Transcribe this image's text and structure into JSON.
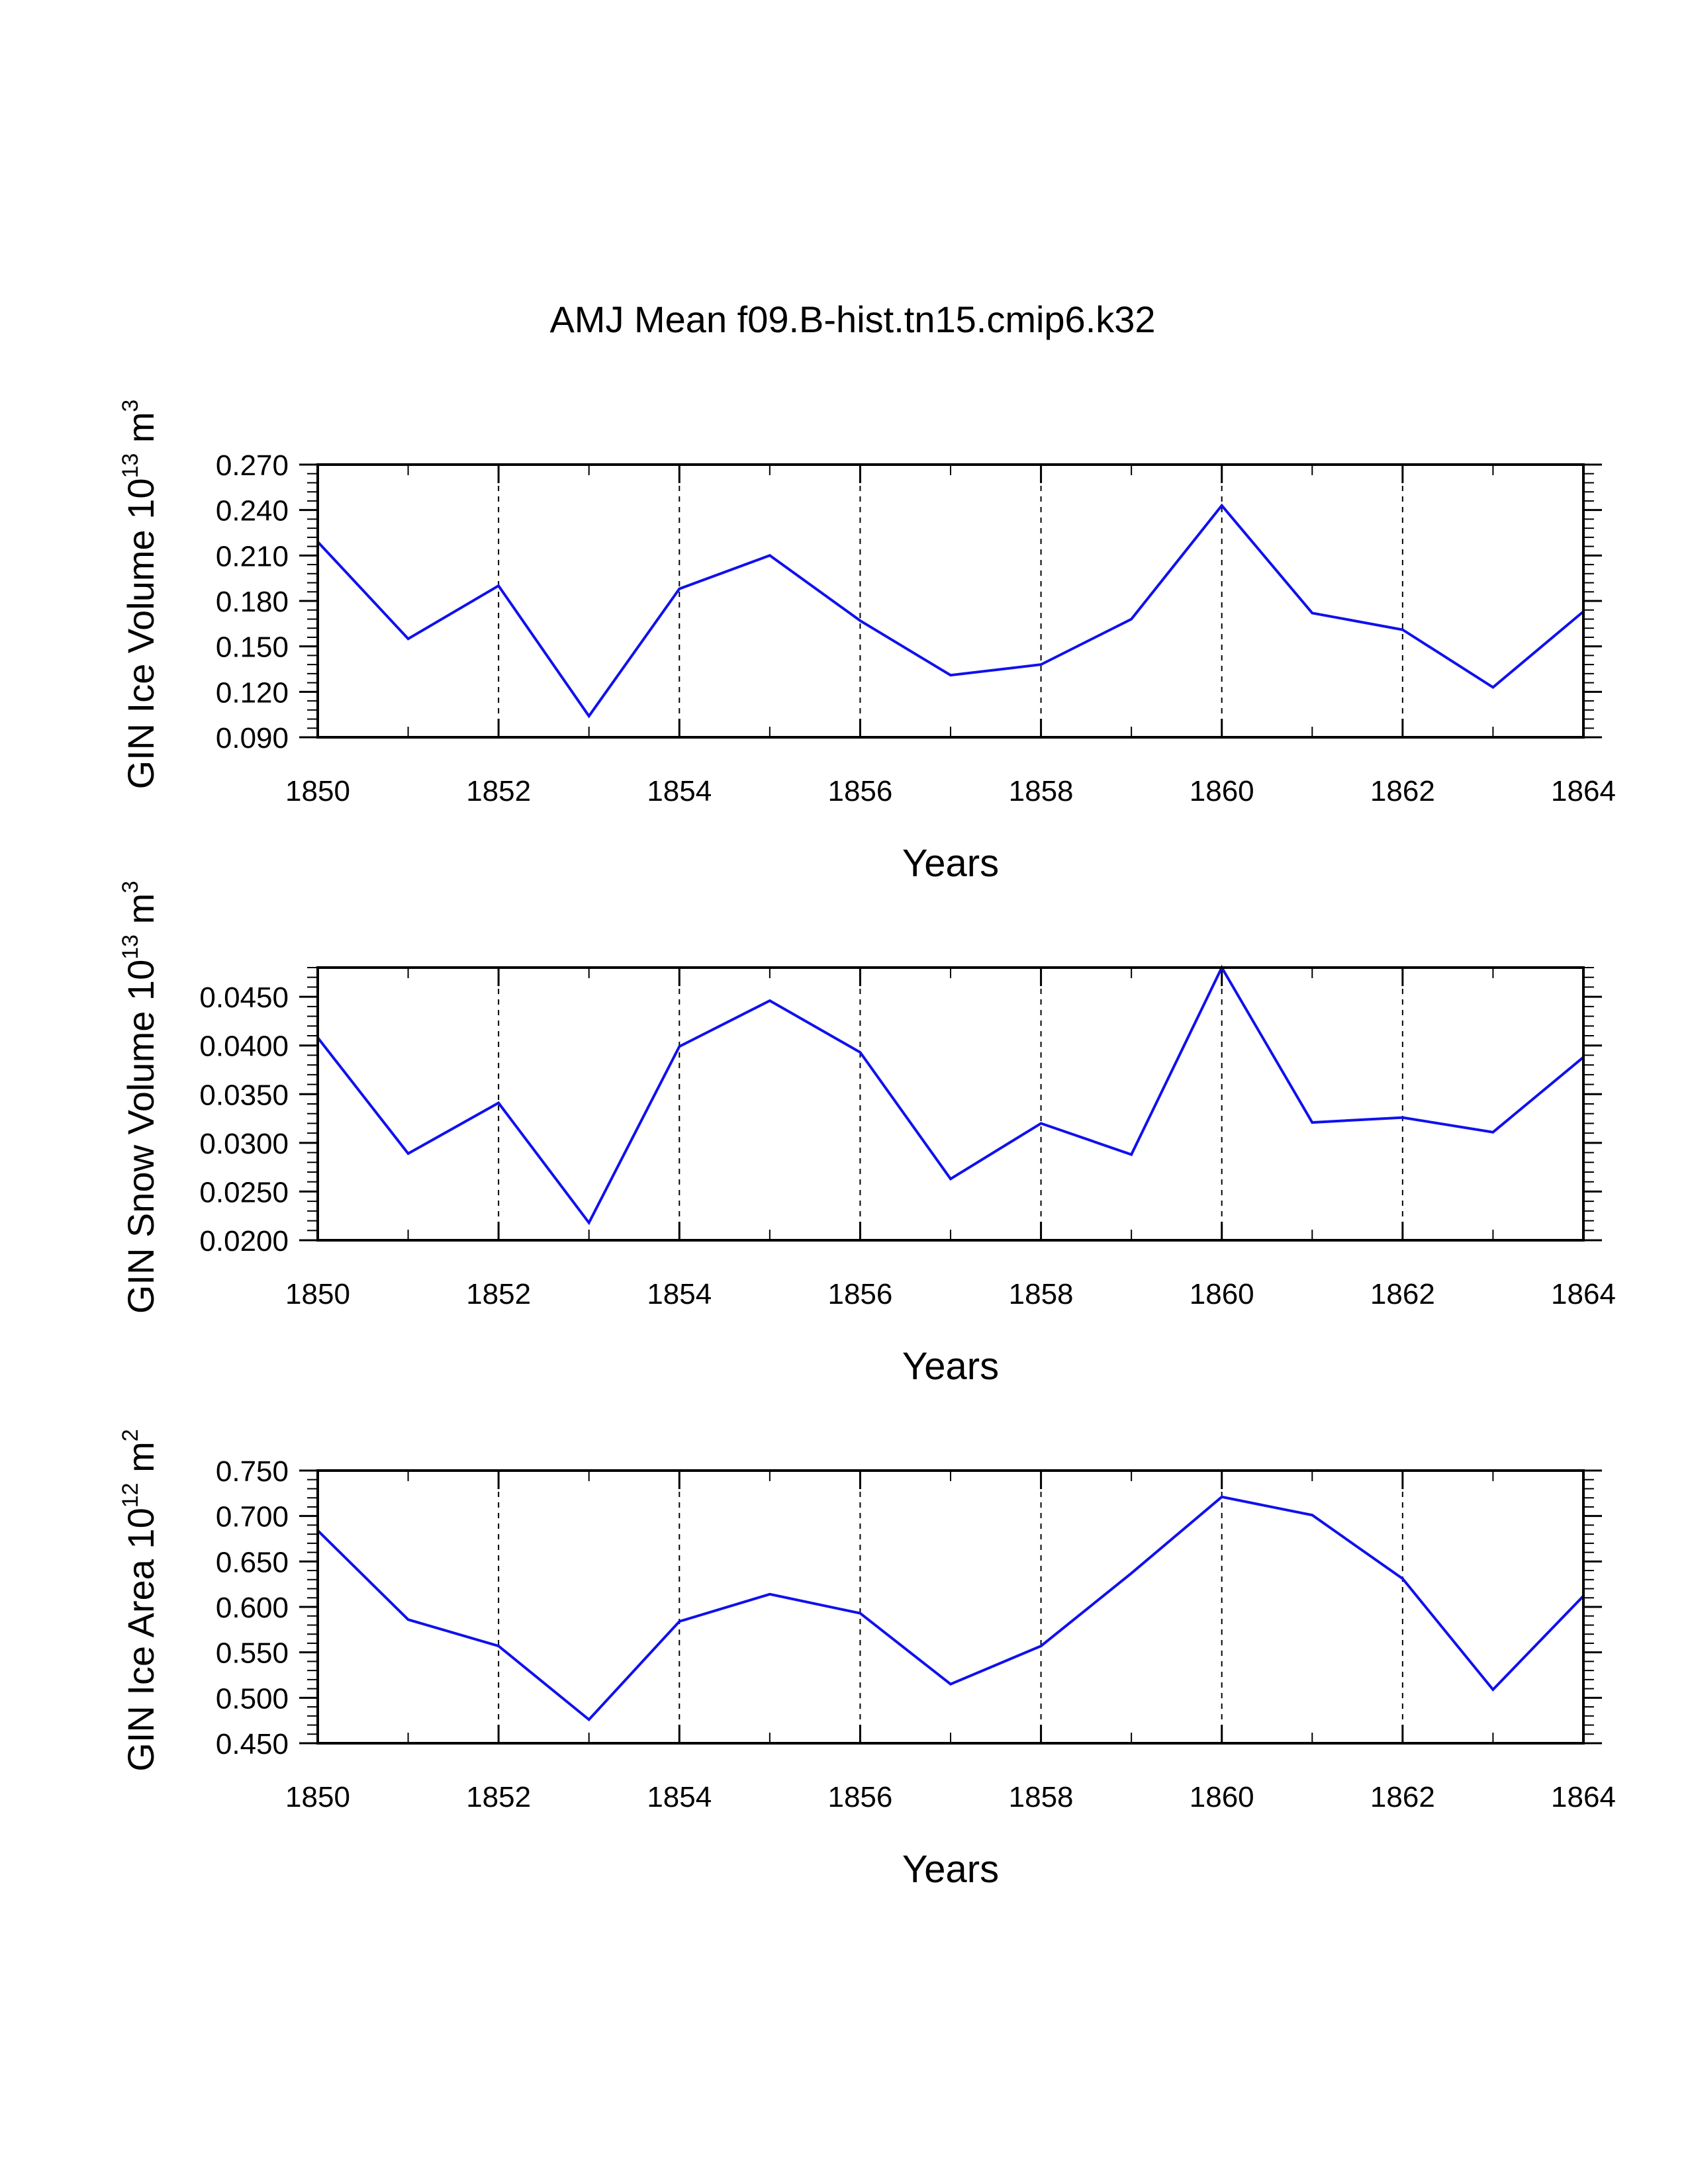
{
  "figure": {
    "title": "AMJ Mean f09.B-hist.tn15.cmip6.k32"
  },
  "chart_data": [
    {
      "type": "line",
      "title": "",
      "xlabel": "Years",
      "ylabel": {
        "text": "GIN Ice Volume 10",
        "sup": "13",
        "unit": " m",
        "unit_sup": "3"
      },
      "xlim": [
        1850,
        1864
      ],
      "ylim": [
        0.09,
        0.27
      ],
      "xticks": [
        1850,
        1852,
        1854,
        1856,
        1858,
        1860,
        1862,
        1864
      ],
      "yticks": [
        "0.090",
        "0.120",
        "0.150",
        "0.180",
        "0.210",
        "0.240",
        "0.270"
      ],
      "ytick_values": [
        0.09,
        0.12,
        0.15,
        0.18,
        0.21,
        0.24,
        0.27
      ],
      "grid": "dashed vertical at major x ticks",
      "series": [
        {
          "name": "GIN Ice Volume",
          "color": "#1010ee",
          "x": [
            1850,
            1851,
            1852,
            1853,
            1854,
            1855,
            1856,
            1857,
            1858,
            1859,
            1860,
            1861,
            1862,
            1863,
            1864
          ],
          "y": [
            0.219,
            0.155,
            0.19,
            0.104,
            0.188,
            0.21,
            0.167,
            0.131,
            0.138,
            0.168,
            0.243,
            0.172,
            0.161,
            0.123,
            0.173
          ]
        }
      ]
    },
    {
      "type": "line",
      "title": "",
      "xlabel": "Years",
      "ylabel": {
        "text": "GIN Snow Volume 10",
        "sup": "13",
        "unit": " m",
        "unit_sup": "3"
      },
      "xlim": [
        1850,
        1864
      ],
      "ylim": [
        0.02,
        0.048
      ],
      "xticks": [
        1850,
        1852,
        1854,
        1856,
        1858,
        1860,
        1862,
        1864
      ],
      "yticks": [
        "0.0200",
        "0.0250",
        "0.0300",
        "0.0350",
        "0.0400",
        "0.0450"
      ],
      "ytick_values": [
        0.02,
        0.025,
        0.03,
        0.035,
        0.04,
        0.045
      ],
      "grid": "dashed vertical at major x ticks",
      "series": [
        {
          "name": "GIN Snow Volume",
          "color": "#1010ee",
          "x": [
            1850,
            1851,
            1852,
            1853,
            1854,
            1855,
            1856,
            1857,
            1858,
            1859,
            1860,
            1861,
            1862,
            1863,
            1864
          ],
          "y": [
            0.0408,
            0.0289,
            0.0341,
            0.0218,
            0.0399,
            0.0446,
            0.0393,
            0.0263,
            0.032,
            0.0288,
            0.048,
            0.0321,
            0.0326,
            0.0311,
            0.0388
          ]
        }
      ]
    },
    {
      "type": "line",
      "title": "",
      "xlabel": "Years",
      "ylabel": {
        "text": "GIN Ice Area 10",
        "sup": "12",
        "unit": " m",
        "unit_sup": "2"
      },
      "xlim": [
        1850,
        1864
      ],
      "ylim": [
        0.45,
        0.75
      ],
      "xticks": [
        1850,
        1852,
        1854,
        1856,
        1858,
        1860,
        1862,
        1864
      ],
      "yticks": [
        "0.450",
        "0.500",
        "0.550",
        "0.600",
        "0.650",
        "0.700",
        "0.750"
      ],
      "ytick_values": [
        0.45,
        0.5,
        0.55,
        0.6,
        0.65,
        0.7,
        0.75
      ],
      "grid": "dashed vertical at major x ticks",
      "series": [
        {
          "name": "GIN Ice Area",
          "color": "#1010ee",
          "x": [
            1850,
            1851,
            1852,
            1853,
            1854,
            1855,
            1856,
            1857,
            1858,
            1859,
            1860,
            1861,
            1862,
            1863,
            1864
          ],
          "y": [
            0.684,
            0.586,
            0.557,
            0.476,
            0.584,
            0.614,
            0.593,
            0.515,
            0.557,
            0.637,
            0.721,
            0.701,
            0.631,
            0.509,
            0.612
          ]
        }
      ]
    }
  ]
}
